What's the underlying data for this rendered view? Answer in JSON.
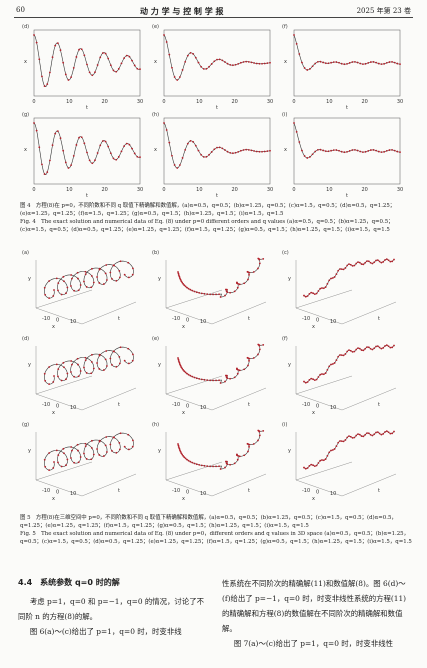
{
  "header": {
    "page_number": "60",
    "journal": "动 力 学 与 控 制 学 报",
    "issue": "2025 年第 23 卷"
  },
  "figure4": {
    "panels": [
      "(d)",
      "(e)",
      "(f)",
      "(g)",
      "(h)",
      "(i)"
    ],
    "x_ticks": [
      "0",
      "10",
      "20",
      "30"
    ],
    "x_label": "t",
    "y_label": "x",
    "caption_cn": "图 4　方程(8)在 p=0，不同阶数和不同 q 取值下精确解和数值解，(a)α=0.5，q=0.5；(b)α=1.25，q=0.5；(c)α=1.5，q=0.5；(d)α=0.5，q=1.25；(e)α=1.25，q=1.25；(f)α=1.5，q=1.25；(g)α=0.5，q=1.5；(h)α=1.25，q=1.5；(i)α=1.5，q=1.5",
    "caption_en": "Fig. 4　The exact solution and numerical data of Eq. (8) under p=0 different orders and q values (a)α=0.5，q=0.5；(b)α=1.25，q=0.5；(c)α=1.5，q=0.5；(d)α=0.5，q=1.25；(e)α=1.25，q=1.25；(f)α=1.5，q=1.25；(g)α=0.5，q=1.5；(h)α=1.25，q=1.5；(i)α=1.5，q=1.5"
  },
  "figure5": {
    "panels": [
      "(a)",
      "(b)",
      "(c)",
      "(d)",
      "(e)",
      "(f)",
      "(g)",
      "(h)",
      "(i)"
    ],
    "ticks": [
      "-10",
      "0",
      "10"
    ],
    "axis_labels": [
      "x",
      "y",
      "t"
    ],
    "caption_cn": "图 5　方程(8)在三维空间中 p=0，不同阶数和不同 q 取值下精确解和数值解，(a)α=0.5，q=0.5；(b)α=1.25，q=0.5；(c)α=1.5，q=0.5；(d)α=0.5，q=1.25；(e)α=1.25，q=1.25；(f)α=1.5，q=1.25；(g)α=0.5，q=1.5；(h)α=1.25，q=1.5；(i)α=1.5，q=1.5",
    "caption_en": "Fig. 5　The exact solution and numerical data of Eq. (8) under p=0，different orders and q values in 3D space (a)α=0.5，q=0.5；(b)α=1.25，q=0.5；(c)α=1.5，q=0.5；(d)α=0.5，q=1.25；(e)α=1.25，q=1.25；(f)α=1.5，q=1.25；(g)α=0.5，q=1.5；(h)α=1.25，q=1.5；(i)α=1.5，q=1.5"
  },
  "section": {
    "heading": "4.4　系统参数 q=0 时的解",
    "left_column": [
      "考虑 p=1，q=0 和 p=−1，q=0 的情况，讨论了不同阶 n 的方程(8)的解。",
      "图 6(a)～(c)给出了 p=1，q=0 时，时变非线"
    ],
    "right_column": [
      "性系统在不同阶次的精确解(11)和数值解(8)。图 6(d)～(f)给出了 p=−1，q=0 时，时变非线性系统的方程(11)的精确解和方程(8)的数值解在不同阶次的精确解和数值解。",
      "图 7(a)～(c)给出了 p=1，q=0 时，时变非线性"
    ]
  }
}
